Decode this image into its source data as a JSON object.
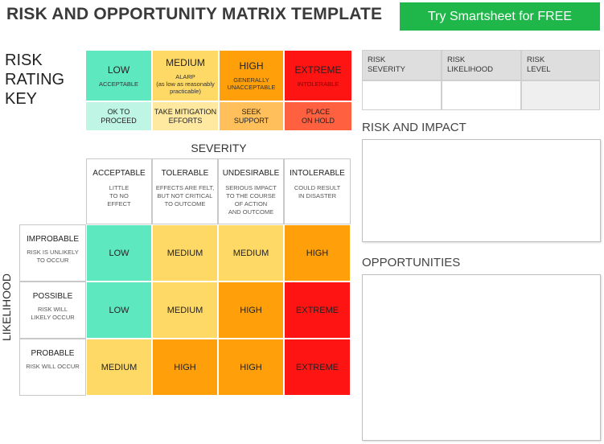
{
  "header": {
    "title": "RISK AND OPPORTUNITY MATRIX TEMPLATE",
    "cta_label": "Try Smartsheet for FREE"
  },
  "key": {
    "label_lines": [
      "RISK",
      "RATING",
      "KEY"
    ],
    "levels": [
      {
        "name": "LOW",
        "desc": "ACCEPTABLE",
        "action_lines": [
          "OK TO",
          "PROCEED"
        ],
        "color": "#5ee8c0",
        "action_color": "#bff5e4"
      },
      {
        "name": "MEDIUM",
        "desc_lines": [
          "ALARP",
          "(as low as reasonably",
          "practicable)"
        ],
        "action_lines": [
          "TAKE MITIGATION",
          "EFFORTS"
        ],
        "color": "#ffd966",
        "action_color": "#ffe8a0"
      },
      {
        "name": "HIGH",
        "desc_lines": [
          "GENERALLY",
          "UNACCEPTABLE"
        ],
        "action_lines": [
          "SEEK",
          "SUPPORT"
        ],
        "color": "#ff9f0a",
        "action_color": "#ffc05c"
      },
      {
        "name": "EXTREME",
        "desc": "INTOLERABLE",
        "action_lines": [
          "PLACE",
          "ON HOLD"
        ],
        "color": "#ff1414",
        "action_color": "#ff6040"
      }
    ]
  },
  "severity": {
    "title": "SEVERITY",
    "columns": [
      {
        "name": "ACCEPTABLE",
        "desc_lines": [
          "LITTLE",
          "TO NO",
          "EFFECT"
        ]
      },
      {
        "name": "TOLERABLE",
        "desc_lines": [
          "EFFECTS ARE FELT,",
          "BUT NOT CRITICAL",
          "TO OUTCOME"
        ]
      },
      {
        "name": "UNDESIRABLE",
        "desc_lines": [
          "SERIOUS IMPACT",
          "TO THE COURSE",
          "OF ACTION",
          "AND OUTCOME"
        ]
      },
      {
        "name": "INTOLERABLE",
        "desc_lines": [
          "COULD RESULT",
          "IN DISASTER"
        ]
      }
    ]
  },
  "likelihood": {
    "title": "LIKELIHOOD",
    "rows": [
      {
        "name": "IMPROBABLE",
        "desc_lines": [
          "RISK IS UNLIKELY",
          "TO OCCUR"
        ]
      },
      {
        "name": "POSSIBLE",
        "desc_lines": [
          "RISK WILL",
          "LIKELY OCCUR"
        ]
      },
      {
        "name": "PROBABLE",
        "desc_lines": [
          "RISK WILL OCCUR"
        ]
      }
    ]
  },
  "matrix": [
    [
      "LOW",
      "MEDIUM",
      "MEDIUM",
      "HIGH"
    ],
    [
      "LOW",
      "MEDIUM",
      "HIGH",
      "EXTREME"
    ],
    [
      "MEDIUM",
      "HIGH",
      "HIGH",
      "EXTREME"
    ]
  ],
  "matrix_colors": {
    "LOW": "#5ee8c0",
    "MEDIUM": "#ffd966",
    "HIGH": "#ff9f0a",
    "EXTREME": "#ff1414",
    "MEDIUM_ALT": "#fcd060",
    "HIGH_ALT": "#fd9a10"
  },
  "rating_table": {
    "headers": [
      [
        "RISK",
        "SEVERITY"
      ],
      [
        "RISK",
        "LIKELIHOOD"
      ],
      [
        "RISK",
        "LEVEL"
      ]
    ],
    "values": [
      "",
      "",
      ""
    ]
  },
  "sections": {
    "impact_title": "RISK AND IMPACT",
    "impact_text": "",
    "opportunities_title": "OPPORTUNITIES",
    "opportunities_text": ""
  }
}
